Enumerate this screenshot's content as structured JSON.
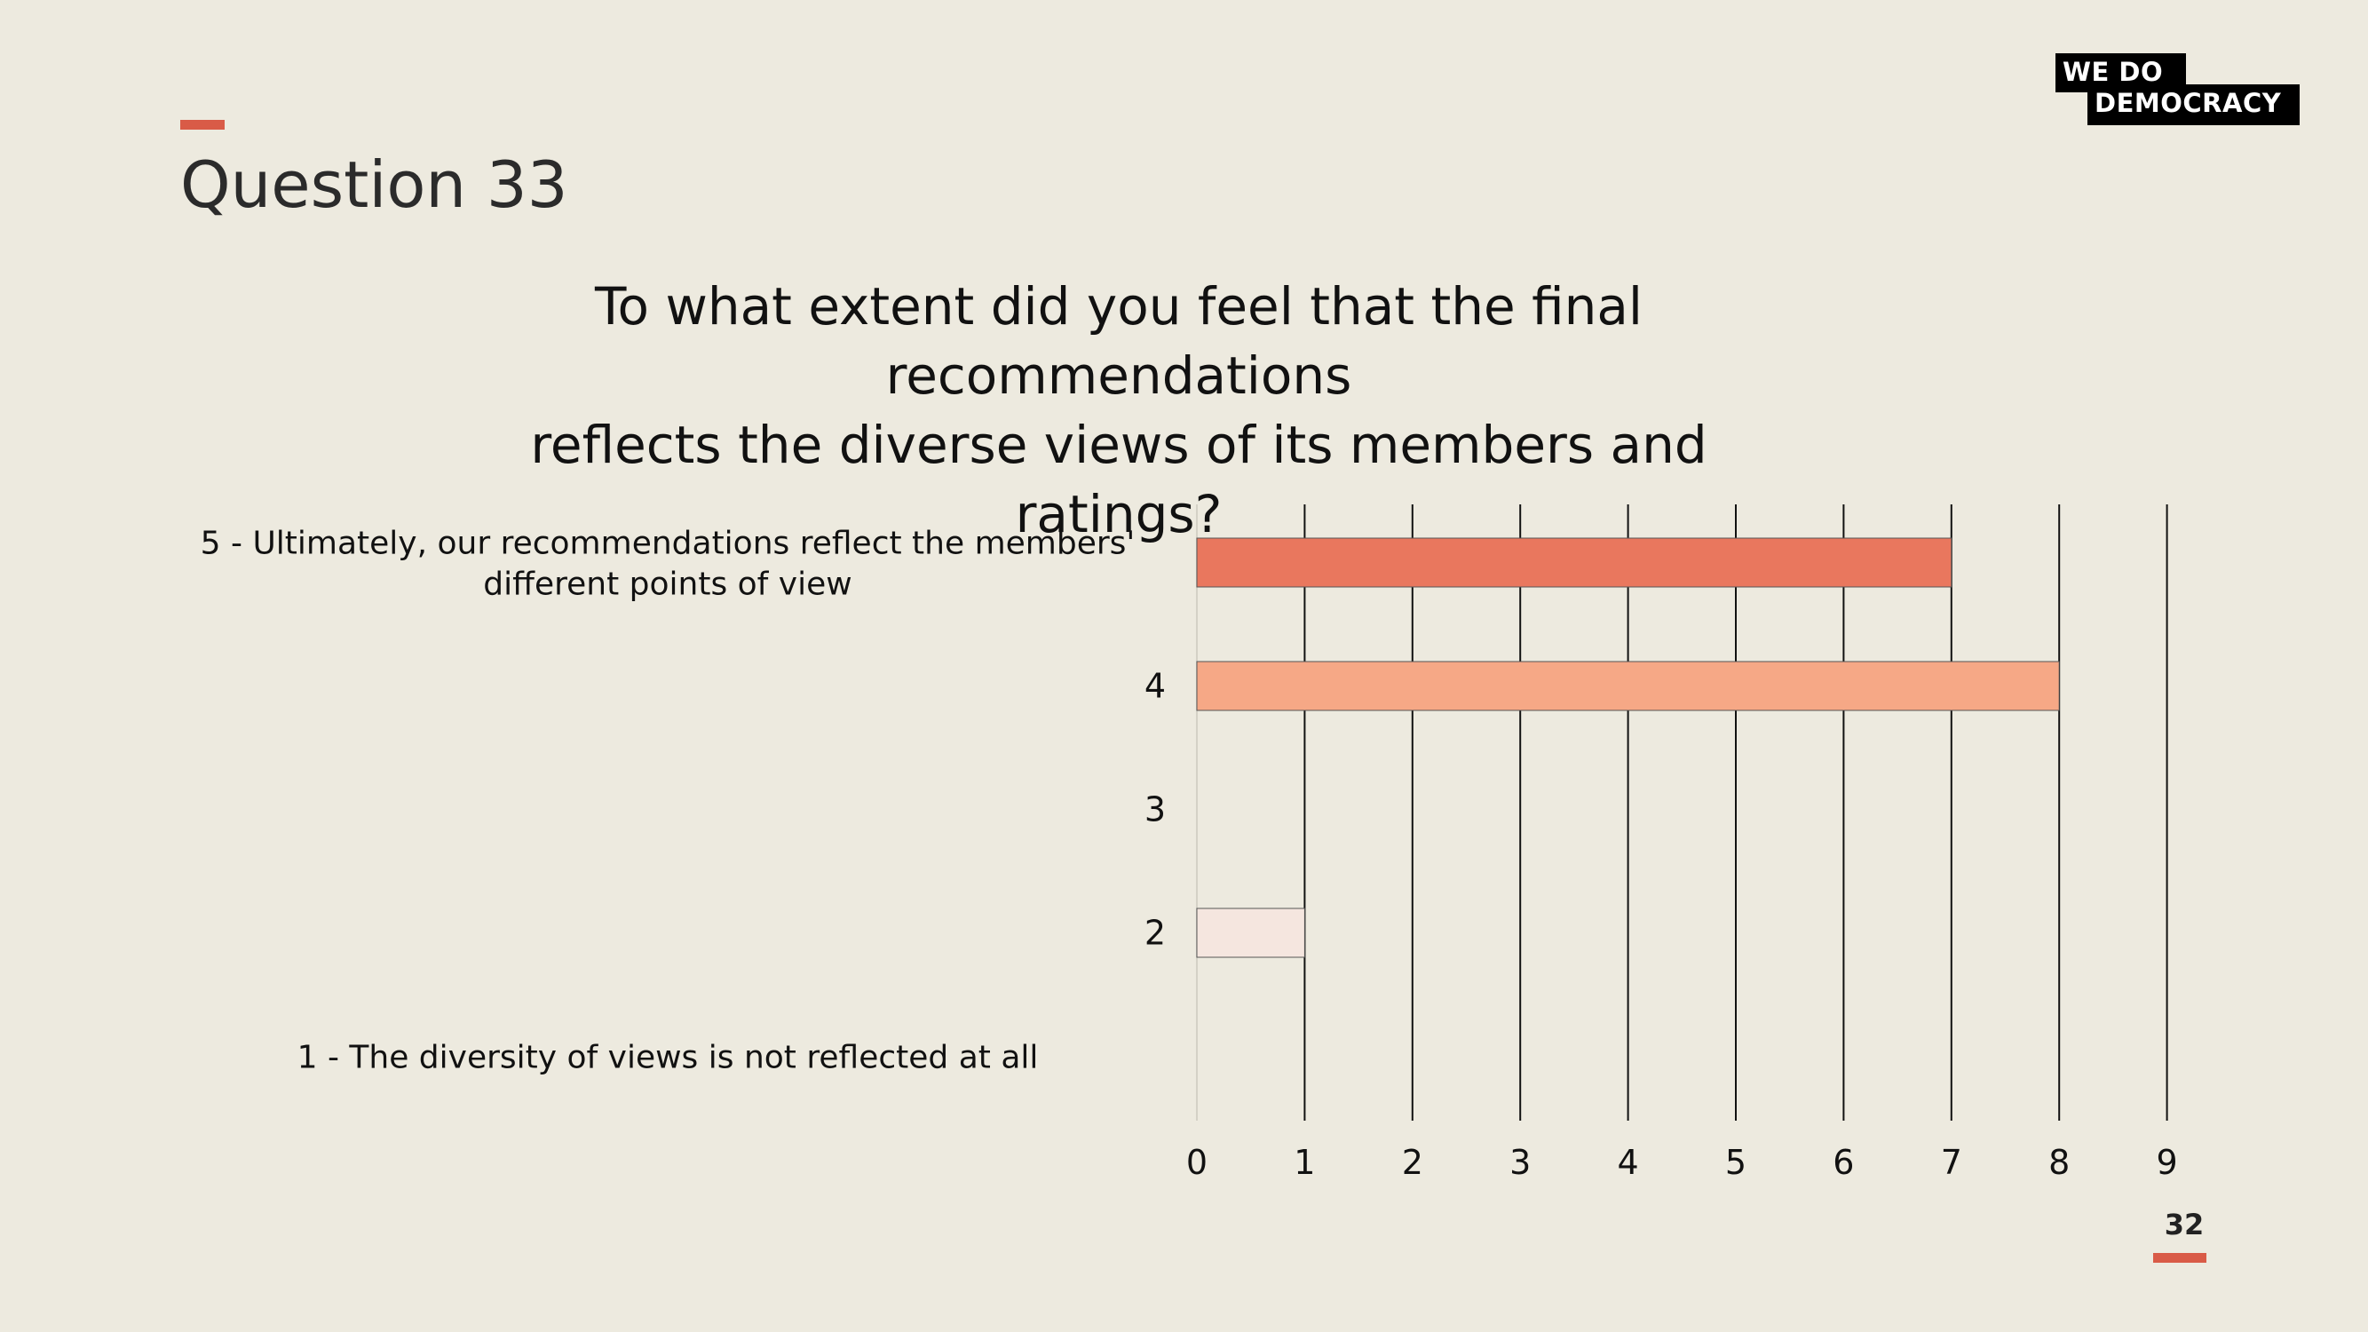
{
  "slide": {
    "title": "Question 33",
    "question_lines": [
      "To what extent did you feel that the final recommendations",
      "reflects the diverse views of its members and",
      "ratings?"
    ],
    "page_number": "32"
  },
  "logo": {
    "line1": "WE  DO",
    "line2": "DEMOCRACY"
  },
  "colors": {
    "accent": "#d95b47",
    "background": "#edeadf"
  },
  "chart_data": {
    "type": "bar",
    "orientation": "horizontal",
    "categories": [
      "5 - Ultimately, our recommendations reflect the members' different points of view",
      "4",
      "3",
      "2",
      "1 - The diversity of views is not reflected at all"
    ],
    "category_lines": [
      [
        "5 - Ultimately, our recommendations reflect the members'",
        "different points of view"
      ],
      [
        "4"
      ],
      [
        "3"
      ],
      [
        "2"
      ],
      [
        "1 - The diversity of views is not reflected at all"
      ]
    ],
    "values": [
      7,
      8,
      0,
      1,
      0
    ],
    "bar_colors": [
      "#e9775e",
      "#f6a886",
      "#f6a886",
      "#f5e6df",
      "#f5e6df"
    ],
    "xlim": [
      0,
      9
    ],
    "xticks": [
      "0",
      "1",
      "2",
      "3",
      "4",
      "5",
      "6",
      "7",
      "8",
      "9"
    ],
    "grid": true,
    "title": "",
    "xlabel": "",
    "ylabel": ""
  }
}
